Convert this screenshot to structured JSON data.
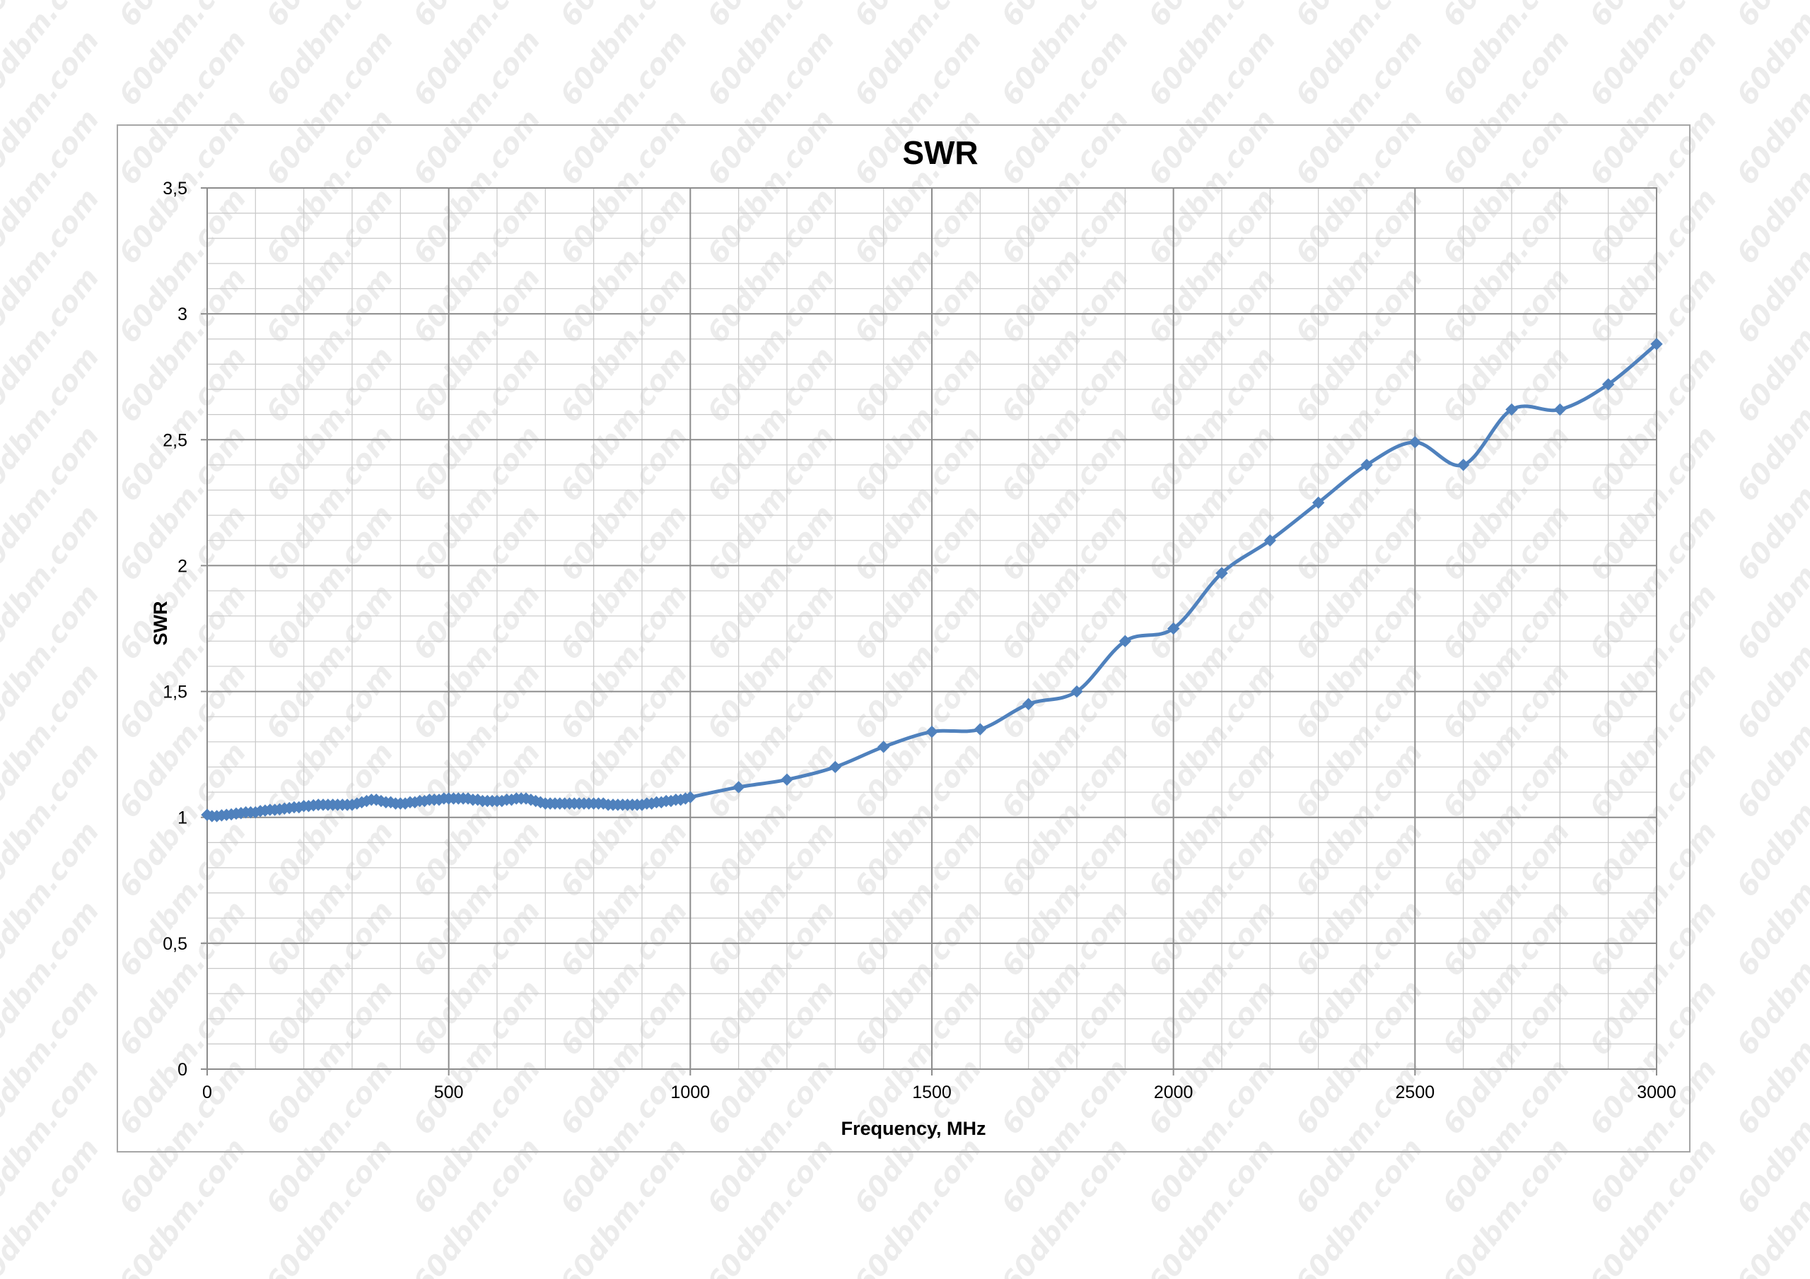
{
  "watermark_text": "60dbm.com",
  "chart_data": {
    "type": "line",
    "title": "SWR",
    "xlabel": "Frequency, MHz",
    "ylabel": "SWR",
    "xlim": [
      0,
      3000
    ],
    "ylim": [
      0,
      3.5
    ],
    "x_ticks": [
      "0",
      "500",
      "1000",
      "1500",
      "2000",
      "2500",
      "3000"
    ],
    "y_ticks": [
      "0",
      "0,5",
      "1",
      "1,5",
      "2",
      "2,5",
      "3",
      "3,5"
    ],
    "x_major_step": 500,
    "x_minor_step": 100,
    "y_major_step": 0.5,
    "y_minor_step": 0.1,
    "grid": true,
    "legend": "none",
    "series": [
      {
        "color": "#4f81bd",
        "marker": "diamond",
        "x": [
          0,
          10,
          20,
          30,
          40,
          50,
          60,
          70,
          80,
          90,
          100,
          110,
          120,
          130,
          140,
          150,
          160,
          170,
          180,
          190,
          200,
          210,
          220,
          230,
          240,
          250,
          260,
          270,
          280,
          290,
          300,
          310,
          320,
          330,
          340,
          350,
          360,
          370,
          380,
          390,
          400,
          410,
          420,
          430,
          440,
          450,
          460,
          470,
          480,
          490,
          500,
          510,
          520,
          530,
          540,
          550,
          560,
          570,
          580,
          590,
          600,
          610,
          620,
          630,
          640,
          650,
          660,
          670,
          680,
          690,
          700,
          710,
          720,
          730,
          740,
          750,
          760,
          770,
          780,
          790,
          800,
          810,
          820,
          830,
          840,
          850,
          860,
          870,
          880,
          890,
          900,
          910,
          920,
          930,
          940,
          950,
          960,
          970,
          980,
          990,
          1000,
          1100,
          1200,
          1300,
          1400,
          1500,
          1600,
          1700,
          1800,
          1900,
          2000,
          2100,
          2200,
          2300,
          2400,
          2500,
          2600,
          2700,
          2800,
          2900,
          3000
        ],
        "y": [
          1.01,
          1.005,
          1.005,
          1.008,
          1.01,
          1.012,
          1.015,
          1.017,
          1.02,
          1.02,
          1.02,
          1.025,
          1.027,
          1.03,
          1.03,
          1.032,
          1.035,
          1.037,
          1.04,
          1.04,
          1.045,
          1.045,
          1.048,
          1.05,
          1.05,
          1.05,
          1.05,
          1.05,
          1.05,
          1.05,
          1.05,
          1.055,
          1.06,
          1.065,
          1.07,
          1.07,
          1.065,
          1.06,
          1.06,
          1.055,
          1.055,
          1.055,
          1.06,
          1.06,
          1.065,
          1.065,
          1.07,
          1.07,
          1.07,
          1.075,
          1.075,
          1.075,
          1.075,
          1.075,
          1.075,
          1.07,
          1.07,
          1.065,
          1.065,
          1.065,
          1.065,
          1.065,
          1.07,
          1.07,
          1.075,
          1.075,
          1.075,
          1.07,
          1.065,
          1.06,
          1.055,
          1.055,
          1.055,
          1.055,
          1.055,
          1.055,
          1.055,
          1.055,
          1.055,
          1.055,
          1.055,
          1.055,
          1.055,
          1.05,
          1.05,
          1.05,
          1.05,
          1.05,
          1.05,
          1.05,
          1.05,
          1.055,
          1.055,
          1.06,
          1.06,
          1.065,
          1.065,
          1.07,
          1.07,
          1.075,
          1.08,
          1.12,
          1.15,
          1.2,
          1.28,
          1.34,
          1.35,
          1.45,
          1.5,
          1.7,
          1.75,
          1.97,
          2.1,
          2.25,
          2.4,
          2.49,
          2.4,
          2.62,
          2.62,
          2.72,
          2.88
        ]
      }
    ]
  }
}
